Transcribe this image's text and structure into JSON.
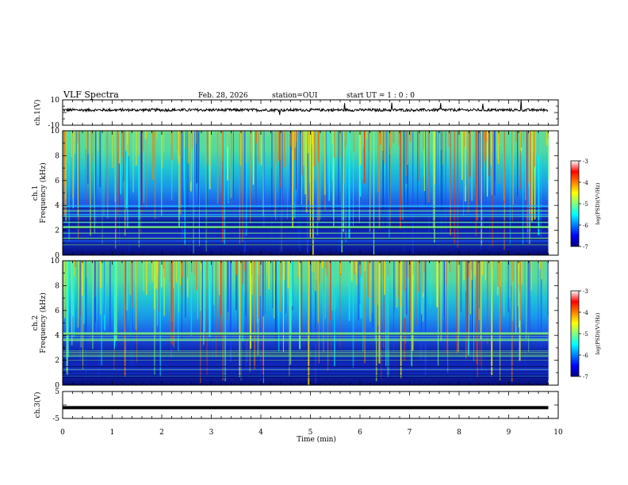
{
  "header": {
    "title": "VLF Spectra",
    "date": "Feb. 28, 2026",
    "station": "station=OUI",
    "start_ut": "start  UT =   1 : 0  : 0"
  },
  "colors": {
    "trace": "#000000",
    "axis": "#000000",
    "colormap": [
      "#00007f",
      "#0000ff",
      "#007fff",
      "#00ffff",
      "#7fff7f",
      "#ffff00",
      "#ff7f00",
      "#ff0000",
      "#ffffff"
    ]
  },
  "chart_data": [
    {
      "type": "line",
      "panel": "ch1-waveform",
      "ylabel": "ch.1(V)",
      "ylim": [
        -10,
        10
      ],
      "ytick_labels": [
        "10",
        "-10"
      ],
      "baseline": 2,
      "xlim": [
        0,
        10
      ],
      "data_extent": 9.8
    },
    {
      "type": "heatmap",
      "panel": "ch1-spectrogram",
      "ylabel": [
        "ch.1",
        "Frequency (kHz)"
      ],
      "ylim": [
        0,
        10
      ],
      "ytick_labels": [
        "0",
        "2",
        "4",
        "6",
        "8",
        "10"
      ],
      "xlim": [
        0,
        10
      ],
      "data_extent": 9.8,
      "colorbar": {
        "label": "log(PSD)(V²/Hz)",
        "range": [
          -7,
          -3
        ],
        "tick_labels": [
          "-3",
          "-4",
          "-5",
          "-6",
          "-7"
        ]
      }
    },
    {
      "type": "heatmap",
      "panel": "ch2-spectrogram",
      "ylabel": [
        "ch.2",
        "Frequency (kHz)"
      ],
      "ylim": [
        0,
        10
      ],
      "ytick_labels": [
        "0",
        "2",
        "4",
        "6",
        "8",
        "10"
      ],
      "xlim": [
        0,
        10
      ],
      "data_extent": 9.8,
      "colorbar": {
        "label": "log(PSD)(V²/Hz)",
        "range": [
          -7,
          -3
        ],
        "tick_labels": [
          "-3",
          "-4",
          "-5",
          "-6",
          "-7"
        ]
      }
    },
    {
      "type": "line",
      "panel": "ch3-waveform",
      "ylabel": "ch.3(V)",
      "ylim": [
        -5,
        5
      ],
      "ytick_labels": [
        "5",
        "-5"
      ],
      "baseline": -1,
      "xlim": [
        0,
        10
      ],
      "data_extent": 9.8,
      "xlabel": "Time  (min)",
      "xtick_labels": [
        "0",
        "1",
        "2",
        "3",
        "4",
        "5",
        "6",
        "7",
        "8",
        "9",
        "10"
      ]
    }
  ]
}
